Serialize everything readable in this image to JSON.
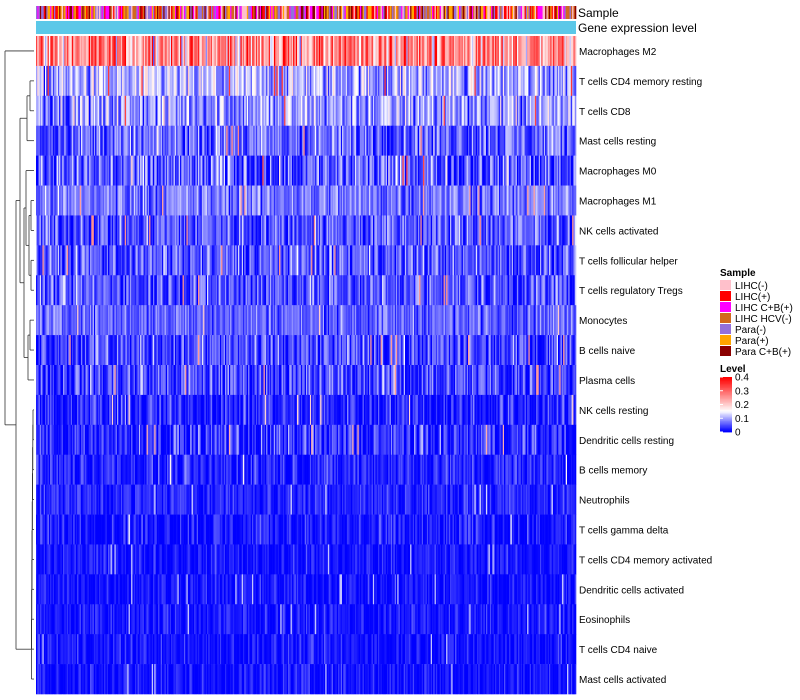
{
  "chart_data": {
    "type": "heatmap",
    "title": "",
    "annotation_tracks": [
      "Sample",
      "Gene expression level"
    ],
    "rows": [
      {
        "label": "Macrophages M2",
        "mean": 0.26,
        "spread": 0.12
      },
      {
        "label": "T cells CD4 memory resting",
        "mean": 0.1,
        "spread": 0.07
      },
      {
        "label": "T cells CD8",
        "mean": 0.09,
        "spread": 0.07
      },
      {
        "label": "Mast cells resting",
        "mean": 0.06,
        "spread": 0.06
      },
      {
        "label": "Macrophages M0",
        "mean": 0.05,
        "spread": 0.08
      },
      {
        "label": "Macrophages M1",
        "mean": 0.07,
        "spread": 0.05
      },
      {
        "label": "NK cells activated",
        "mean": 0.05,
        "spread": 0.06
      },
      {
        "label": "T cells follicular helper",
        "mean": 0.05,
        "spread": 0.06
      },
      {
        "label": "T cells regulatory  Tregs",
        "mean": 0.05,
        "spread": 0.06
      },
      {
        "label": "Monocytes",
        "mean": 0.06,
        "spread": 0.04
      },
      {
        "label": "B cells naive",
        "mean": 0.04,
        "spread": 0.06
      },
      {
        "label": "Plasma cells",
        "mean": 0.04,
        "spread": 0.06
      },
      {
        "label": "NK cells resting",
        "mean": 0.02,
        "spread": 0.05
      },
      {
        "label": "Dendritic cells resting",
        "mean": 0.02,
        "spread": 0.06
      },
      {
        "label": "B cells memory",
        "mean": 0.02,
        "spread": 0.04
      },
      {
        "label": "Neutrophils",
        "mean": 0.02,
        "spread": 0.03
      },
      {
        "label": "T cells gamma delta",
        "mean": 0.01,
        "spread": 0.04
      },
      {
        "label": "T cells CD4 memory activated",
        "mean": 0.01,
        "spread": 0.03
      },
      {
        "label": "Dendritic cells activated",
        "mean": 0.01,
        "spread": 0.03
      },
      {
        "label": "Eosinophils",
        "mean": 0.01,
        "spread": 0.03
      },
      {
        "label": "T cells CD4 naive",
        "mean": 0.01,
        "spread": 0.03
      },
      {
        "label": "Mast cells activated",
        "mean": 0.01,
        "spread": 0.03
      }
    ],
    "n_samples": 420,
    "legend_sample": {
      "title": "Sample",
      "entries": [
        {
          "label": "LIHC(-)",
          "color": "#FFC0CB"
        },
        {
          "label": "LIHC(+)",
          "color": "#FF0000"
        },
        {
          "label": "LIHC C+B(+)",
          "color": "#FF00FF"
        },
        {
          "label": "LIHC HCV(-)",
          "color": "#D2691E"
        },
        {
          "label": "Para(-)",
          "color": "#9370DB"
        },
        {
          "label": "Para(+)",
          "color": "#FFA500"
        },
        {
          "label": "Para C+B(+)",
          "color": "#8B0000"
        }
      ]
    },
    "legend_level": {
      "title": "Level",
      "ticks": [
        {
          "value": 0.4,
          "label": "0.4"
        },
        {
          "value": 0.3,
          "label": "0.3"
        },
        {
          "value": 0.2,
          "label": "0.2"
        },
        {
          "value": 0.1,
          "label": "0.1"
        },
        {
          "value": 0,
          "label": "0"
        }
      ],
      "range": [
        0,
        0.4
      ],
      "colors": {
        "low": "#0000FF",
        "mid": "#FFFFFF",
        "high": "#FF0000"
      },
      "midpoint": 0.15
    },
    "gene_expression_color": "#5BC8E8"
  }
}
